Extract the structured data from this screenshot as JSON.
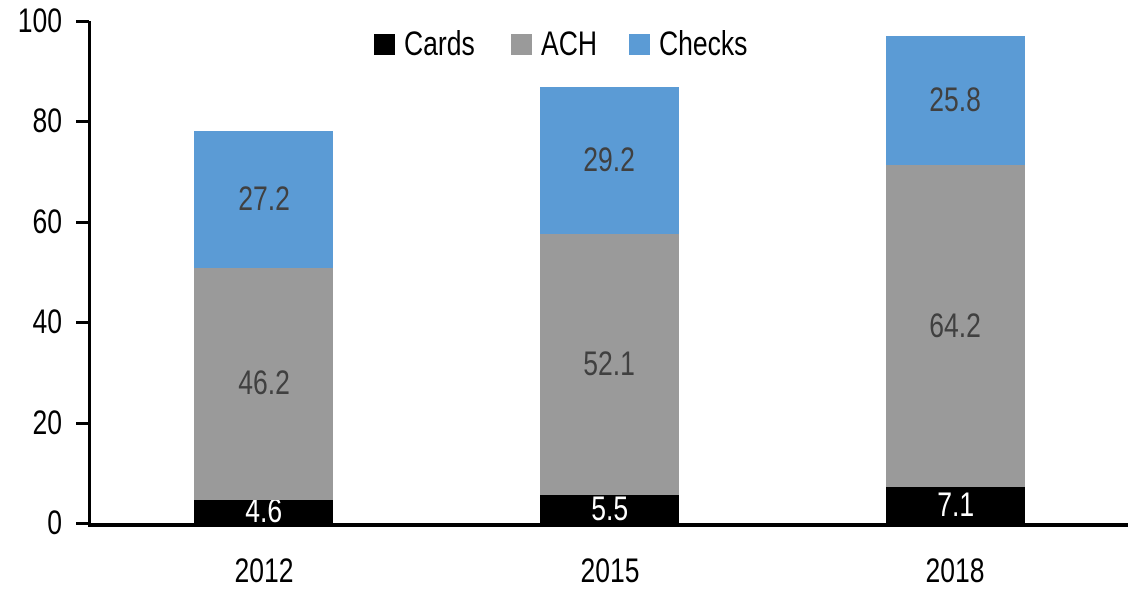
{
  "chart_data": {
    "type": "bar",
    "stacked": true,
    "categories": [
      "2012",
      "2015",
      "2018"
    ],
    "series": [
      {
        "name": "Cards",
        "color": "#000000",
        "label_color": "#ffffff",
        "values": [
          4.6,
          5.5,
          7.1
        ]
      },
      {
        "name": "ACH",
        "color": "#9a9a9a",
        "label_color": "#404040",
        "values": [
          46.2,
          52.1,
          64.2
        ]
      },
      {
        "name": "Checks",
        "color": "#5b9bd5",
        "label_color": "#404040",
        "values": [
          27.2,
          29.2,
          25.8
        ]
      }
    ],
    "ylim": [
      0,
      100
    ],
    "yticks": [
      0,
      20,
      40,
      60,
      80,
      100
    ],
    "grid": false,
    "legend_position": "top",
    "axis_color": "#000000",
    "background_color": "#ffffff"
  }
}
